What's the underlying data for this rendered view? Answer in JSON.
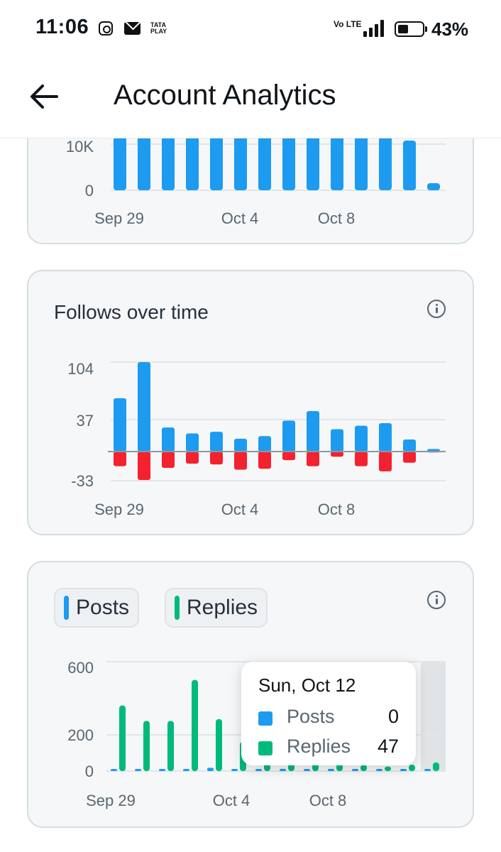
{
  "status_bar": {
    "time": "11:06",
    "tata_play": "TATA PLAY",
    "volte": "Vo LTE",
    "battery": "43%",
    "battery_level": 0.43
  },
  "header": {
    "title": "Account Analytics",
    "back_icon": "arrow-left-icon"
  },
  "impressions_card": {
    "chart_data": {
      "type": "bar",
      "x_ticks": [
        "Sep 29",
        "Oct 4",
        "Oct 8"
      ],
      "y_ticks": [
        "10K",
        "0"
      ]
    }
  },
  "follows_card": {
    "title": "Follows over time",
    "info_icon": "info-icon",
    "chart_data": {
      "type": "bar",
      "x_ticks": [
        "Sep 29",
        "Oct 4",
        "Oct 8"
      ],
      "y_ticks": [
        "104",
        "37",
        "-33"
      ],
      "ylim": [
        -33,
        104
      ],
      "series": [
        {
          "values": [
            62,
            104,
            28,
            21,
            23,
            15,
            18,
            36,
            47,
            26,
            30,
            33,
            14,
            3
          ],
          "color": "#1d9bf0"
        },
        {
          "values": [
            -17,
            -33,
            -19,
            -14,
            -15,
            -21,
            -20,
            -10,
            -17,
            -6,
            -17,
            -23,
            -13,
            -1
          ],
          "color": "#f4212e"
        }
      ]
    }
  },
  "posts_card": {
    "legend": [
      {
        "label": "Posts",
        "color": "#1d9bf0"
      },
      {
        "label": "Replies",
        "color": "#00ba7c"
      }
    ],
    "info_icon": "info-icon",
    "tooltip": {
      "date": "Sun, Oct 12",
      "rows": [
        {
          "label": "Posts",
          "value": "0",
          "color": "#1d9bf0"
        },
        {
          "label": "Replies",
          "value": "47",
          "color": "#00ba7c"
        }
      ]
    },
    "chart_data": {
      "type": "bar",
      "x_ticks": [
        "Sep 29",
        "Oct 4",
        "Oct 8"
      ],
      "y_ticks": [
        "600",
        "200",
        "0"
      ],
      "ylim": [
        0,
        600
      ],
      "series": [
        {
          "name": "Posts",
          "values": [
            4,
            4,
            4,
            6,
            18,
            4,
            6,
            12,
            10,
            12,
            6,
            8,
            5,
            0
          ],
          "color": "#1d9bf0"
        },
        {
          "name": "Replies",
          "values": [
            360,
            275,
            275,
            500,
            285,
            160,
            80,
            60,
            50,
            40,
            35,
            25,
            35,
            47
          ],
          "color": "#00ba7c"
        }
      ]
    }
  }
}
